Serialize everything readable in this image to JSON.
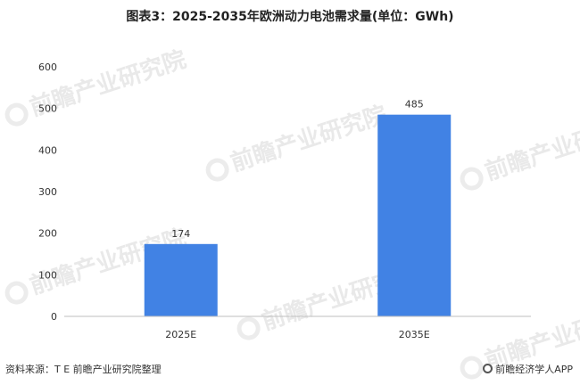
{
  "title": "图表3：2025-2035年欧洲动力电池需求量(单位：GWh)",
  "chart_data": {
    "type": "bar",
    "title": "图表3：2025-2035年欧洲动力电池需求量(单位：GWh)",
    "categories": [
      "2025E",
      "2035E"
    ],
    "values": [
      174,
      485
    ],
    "ylim": [
      0,
      600
    ],
    "yticks": [
      0,
      100,
      200,
      300,
      400,
      500,
      600
    ],
    "xlabel": "",
    "ylabel": "",
    "grid": false,
    "bar_color": "#4182e4"
  },
  "footer": {
    "source": "资料来源：T E 前瞻产业研究院整理",
    "brand": "前瞻经济学人APP"
  },
  "watermark": {
    "text": "前瞻产业研究院"
  }
}
